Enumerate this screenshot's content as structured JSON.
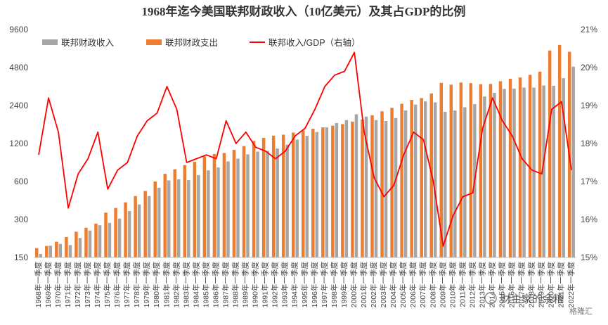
{
  "chart_data": {
    "type": "bar",
    "title": "1968年迄今美国联邦财政收入（10亿美元）及其占GDP的比例",
    "left_axis": {
      "scale": "log",
      "ticks": [
        150,
        300,
        600,
        1200,
        2400,
        4800,
        9600
      ],
      "tick_labels": [
        "150",
        "300",
        "600",
        "1200",
        "2400",
        "4800",
        "9600"
      ],
      "range": [
        150,
        9600
      ]
    },
    "right_axis": {
      "ticks": [
        15,
        16,
        17,
        18,
        19,
        20,
        21
      ],
      "tick_labels": [
        "15%",
        "16%",
        "17%",
        "18%",
        "19%",
        "20%",
        "21%"
      ],
      "range": [
        15,
        21
      ]
    },
    "legend": [
      {
        "key": "revenue",
        "label": "联邦财政收入",
        "color": "#a6a6a6",
        "kind": "bar"
      },
      {
        "key": "spending",
        "label": "联邦财政支出",
        "color": "#ed7d31",
        "kind": "bar"
      },
      {
        "key": "ratio",
        "label": "联邦收入/GDP（右轴）",
        "color": "#ff0000",
        "kind": "line"
      }
    ],
    "x": [
      "1968年一季度",
      "1969年一季度",
      "1970年一季度",
      "1971年一季度",
      "1972年一季度",
      "1973年一季度",
      "1974年一季度",
      "1975年一季度",
      "1976年一季度",
      "1977年一季度",
      "1978年一季度",
      "1979年一季度",
      "1980年一季度",
      "1981年一季度",
      "1982年一季度",
      "1983年一季度",
      "1984年一季度",
      "1985年一季度",
      "1986年一季度",
      "1987年一季度",
      "1988年一季度",
      "1989年一季度",
      "1990年一季度",
      "1991年一季度",
      "1992年一季度",
      "1993年一季度",
      "1994年一季度",
      "1995年一季度",
      "1996年一季度",
      "1997年一季度",
      "1998年一季度",
      "1999年一季度",
      "2000年一季度",
      "2001年一季度",
      "2002年一季度",
      "2003年一季度",
      "2004年一季度",
      "2005年一季度",
      "2006年一季度",
      "2007年一季度",
      "2008年一季度",
      "2009年一季度",
      "2010年一季度",
      "2011年一季度",
      "2012年一季度",
      "2013年一季度",
      "2014年一季度",
      "2015年一季度",
      "2016年一季度",
      "2017年一季度",
      "2018年一季度",
      "2019年一季度",
      "2020年一季度",
      "2021年一季度",
      "2022年一季度"
    ],
    "series": [
      {
        "name": "联邦财政收入",
        "key": "revenue",
        "values": [
          160,
          186,
          192,
          188,
          214,
          245,
          270,
          282,
          305,
          350,
          395,
          460,
          535,
          612,
          625,
          615,
          675,
          735,
          775,
          865,
          910,
          985,
          1035,
          1050,
          1095,
          1175,
          1290,
          1380,
          1480,
          1610,
          1740,
          1840,
          2045,
          1960,
          1840,
          1810,
          1910,
          2195,
          2440,
          2585,
          2540,
          2140,
          2190,
          2325,
          2460,
          2830,
          3025,
          3250,
          3270,
          3330,
          3330,
          3460,
          3440,
          3950,
          4880
        ]
      },
      {
        "name": "联邦财政支出",
        "key": "spending",
        "values": [
          178,
          185,
          200,
          218,
          240,
          258,
          278,
          340,
          370,
          410,
          460,
          505,
          600,
          690,
          750,
          810,
          860,
          950,
          990,
          1010,
          1070,
          1145,
          1260,
          1330,
          1385,
          1410,
          1465,
          1520,
          1570,
          1610,
          1660,
          1710,
          1790,
          1860,
          2010,
          2160,
          2300,
          2480,
          2660,
          2750,
          2990,
          3630,
          3510,
          3650,
          3610,
          3540,
          3560,
          3740,
          3910,
          4000,
          4200,
          4450,
          6550,
          7250,
          6400
        ]
      },
      {
        "name": "联邦收入/GDP（右轴）",
        "key": "ratio",
        "values": [
          17.7,
          19.2,
          18.3,
          16.3,
          17.2,
          17.6,
          18.3,
          16.8,
          17.3,
          17.5,
          18.2,
          18.6,
          18.8,
          19.5,
          18.9,
          17.5,
          17.6,
          17.7,
          17.6,
          18.6,
          18.0,
          18.3,
          17.9,
          17.8,
          17.6,
          17.8,
          18.2,
          18.4,
          18.9,
          19.5,
          19.8,
          19.9,
          20.4,
          18.3,
          17.1,
          16.6,
          16.9,
          17.7,
          18.3,
          18.1,
          17.0,
          15.3,
          16.1,
          16.6,
          16.7,
          18.4,
          19.2,
          18.6,
          18.2,
          17.6,
          17.3,
          17.2,
          18.9,
          19.1,
          17.3
        ]
      }
    ]
  },
  "watermark": {
    "main": "财主家的余粮",
    "sub": "格隆汇"
  }
}
